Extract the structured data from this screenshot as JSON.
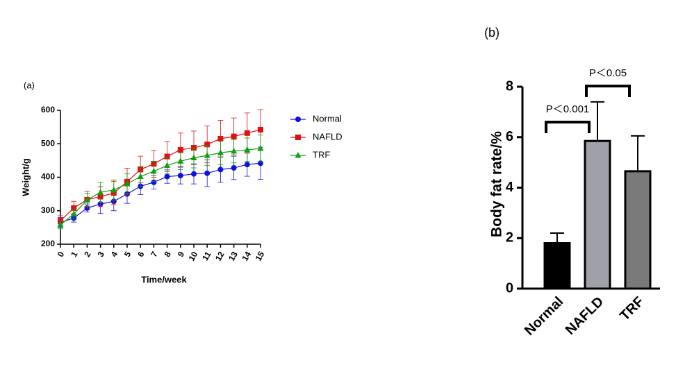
{
  "chart_data": [
    {
      "type": "line",
      "label": "(a)",
      "x_label": "Time/week",
      "y_label": "Weight/g",
      "x": [
        0,
        1,
        2,
        3,
        4,
        5,
        6,
        7,
        8,
        9,
        10,
        11,
        12,
        13,
        14,
        15
      ],
      "xlim": [
        0,
        15
      ],
      "xticks": [
        0,
        1,
        2,
        3,
        4,
        5,
        6,
        7,
        8,
        9,
        10,
        11,
        12,
        13,
        14,
        15
      ],
      "ylim": [
        200,
        600
      ],
      "yticks": [
        200,
        300,
        400,
        500,
        600
      ],
      "series": [
        {
          "name": "Normal",
          "color": "#1010e0",
          "marker": "circle",
          "values": [
            265,
            278,
            308,
            320,
            328,
            350,
            373,
            385,
            402,
            405,
            410,
            412,
            423,
            428,
            438,
            442
          ],
          "errors": [
            15,
            12,
            12,
            28,
            28,
            28,
            25,
            20,
            20,
            25,
            30,
            40,
            38,
            35,
            35,
            48
          ]
        },
        {
          "name": "NAFLD",
          "color": "#e01010",
          "marker": "square",
          "values": [
            270,
            308,
            333,
            342,
            353,
            387,
            423,
            440,
            462,
            482,
            488,
            498,
            515,
            522,
            532,
            542
          ],
          "errors": [
            15,
            20,
            25,
            30,
            35,
            40,
            40,
            40,
            45,
            50,
            50,
            55,
            55,
            55,
            60,
            60
          ]
        },
        {
          "name": "TRF",
          "color": "#10a010",
          "marker": "triangle",
          "values": [
            258,
            290,
            332,
            355,
            362,
            380,
            402,
            418,
            435,
            448,
            458,
            465,
            473,
            478,
            482,
            486
          ],
          "errors": [
            12,
            15,
            20,
            30,
            30,
            30,
            30,
            30,
            25,
            25,
            30,
            30,
            35,
            35,
            35,
            40
          ]
        }
      ]
    },
    {
      "type": "bar",
      "label": "(b)",
      "y_label": "Body fat rate/%",
      "categories": [
        "Normal",
        "NAFLD",
        "TRF"
      ],
      "values": [
        1.8,
        5.85,
        4.65
      ],
      "errors": [
        0.4,
        1.55,
        1.4
      ],
      "colors": [
        "#000000",
        "#a0a0a8",
        "#7a7a7a"
      ],
      "ylim": [
        0,
        8
      ],
      "yticks": [
        0,
        2,
        4,
        6,
        8
      ],
      "annotations": [
        {
          "text": "P＜0.001",
          "from": 0,
          "to": 1
        },
        {
          "text": "P＜0.05",
          "from": 1,
          "to": 2
        }
      ]
    }
  ]
}
